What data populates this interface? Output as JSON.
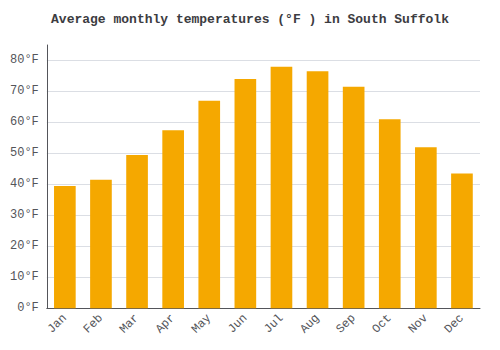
{
  "chart_data": {
    "type": "bar",
    "title": "Average monthly temperatures (°F ) in South Suffolk",
    "categories": [
      "Jan",
      "Feb",
      "Mar",
      "Apr",
      "May",
      "Jun",
      "Jul",
      "Aug",
      "Sep",
      "Oct",
      "Nov",
      "Dec"
    ],
    "values": [
      39.5,
      41.5,
      49.5,
      57.5,
      67.0,
      74.0,
      78.0,
      76.5,
      71.5,
      61.0,
      52.0,
      43.5
    ],
    "color": "#F5A800",
    "ylim": [
      0,
      85
    ],
    "yticks": [
      {
        "value": 0,
        "label": "0°F"
      },
      {
        "value": 10,
        "label": "10°F"
      },
      {
        "value": 20,
        "label": "20°F"
      },
      {
        "value": 30,
        "label": "30°F"
      },
      {
        "value": 40,
        "label": "40°F"
      },
      {
        "value": 50,
        "label": "50°F"
      },
      {
        "value": 60,
        "label": "60°F"
      },
      {
        "value": 70,
        "label": "70°F"
      },
      {
        "value": 80,
        "label": "80°F"
      }
    ],
    "grid": true
  }
}
